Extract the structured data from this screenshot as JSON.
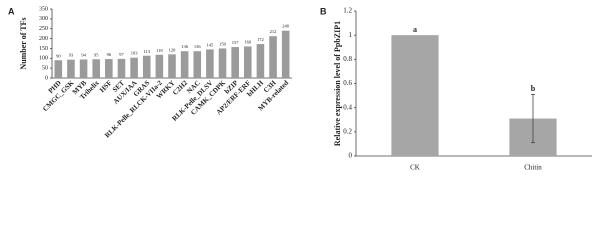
{
  "chart_data": [
    {
      "type": "bar",
      "panel_label": "A",
      "y_label": "Number of TFs",
      "categories": [
        "PHD",
        "CMGC_GSK",
        "MYB",
        "Trihelix",
        "HSF",
        "SET",
        "AUX/IAA",
        "GRAS",
        "RLK-Pelle_RLCK-VIIa-2",
        "WRKY",
        "C2H2",
        "NAC",
        "RLK-Pelle_DLSV",
        "CAMK_CDPK",
        "bZIP",
        "AP2/ERF-ERF",
        "bHLH",
        "C3H",
        "MYB-related"
      ],
      "values": [
        90,
        93,
        94,
        95,
        96,
        97,
        103,
        113,
        118,
        120,
        136,
        136,
        145,
        150,
        157,
        160,
        172,
        212,
        240
      ],
      "color": "#9b9b9b",
      "ylim": [
        0,
        350
      ],
      "yticks": [
        0,
        50,
        100,
        150,
        200,
        250,
        300,
        350
      ]
    },
    {
      "type": "bar",
      "panel_label": "B",
      "y_label": "Relative expression level of PpbZIP1",
      "categories": [
        "CK",
        "Chitin"
      ],
      "values": [
        1,
        0.31
      ],
      "errors": [
        null,
        0.2
      ],
      "annotations": [
        "a",
        "b"
      ],
      "color": "#a6a6a6",
      "ylim": [
        0,
        1.2
      ],
      "yticks": [
        0,
        0.2,
        0.4,
        0.6,
        0.8,
        1,
        1.2
      ]
    }
  ]
}
